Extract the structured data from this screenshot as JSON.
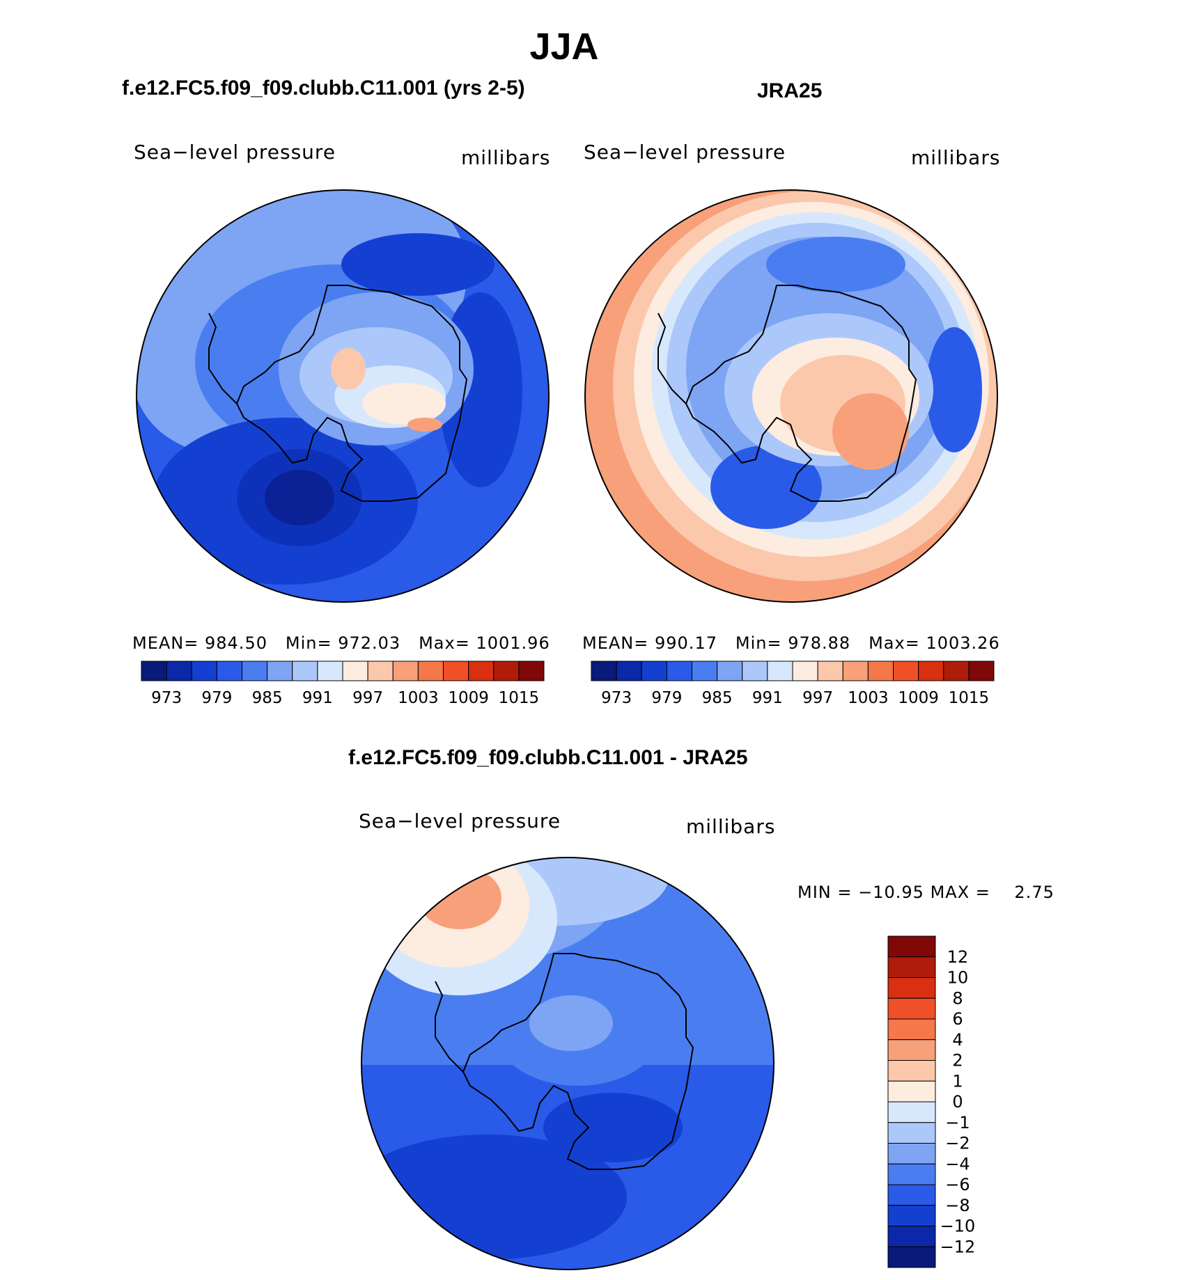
{
  "figure": {
    "title": "JJA",
    "variable_label": "Sea−level pressure",
    "units_label": "millibars"
  },
  "panels": [
    {
      "id": "model",
      "title": "f.e12.FC5.f09_f09.clubb.C11.001 (yrs 2-5)",
      "variable": "Sea−level pressure",
      "units": "millibars",
      "stats": {
        "mean_label": "MEAN=",
        "mean": "984.50",
        "min_label": "Min=",
        "min": "972.03",
        "max_label": "Max=",
        "max": "1001.96"
      }
    },
    {
      "id": "obs",
      "title": "JRA25",
      "variable": "Sea−level pressure",
      "units": "millibars",
      "stats": {
        "mean_label": "MEAN=",
        "mean": "990.17",
        "min_label": "Min=",
        "min": "978.88",
        "max_label": "Max=",
        "max": "1003.26"
      }
    },
    {
      "id": "diff",
      "title": "f.e12.FC5.f09_f09.clubb.C11.001 - JRA25",
      "variable": "Sea−level pressure",
      "units": "millibars",
      "stats": {
        "min_label": "MIN =",
        "min": "−10.95",
        "max_label": "MAX =",
        "max": "2.75"
      }
    }
  ],
  "colorbar_abs": {
    "ticks": [
      "973",
      "979",
      "985",
      "991",
      "997",
      "1003",
      "1009",
      "1015"
    ],
    "colors": [
      "#0a1a7a",
      "#0a28a8",
      "#1440d2",
      "#2a5ae8",
      "#4a7ef0",
      "#7ea4f4",
      "#acc8fa",
      "#d8e8fc",
      "#fdece0",
      "#fbc8ac",
      "#f8a07a",
      "#f4784a",
      "#f05028",
      "#d83010",
      "#b01c0a",
      "#800808"
    ]
  },
  "colorbar_diff": {
    "levels": [
      "12",
      "10",
      "8",
      "6",
      "4",
      "2",
      "1",
      "0",
      "−1",
      "−2",
      "−4",
      "−6",
      "−8",
      "−10",
      "−12"
    ],
    "colors_top_to_bottom": [
      "#800808",
      "#b01c0a",
      "#d83010",
      "#f05028",
      "#f4784a",
      "#f8a07a",
      "#fbc8ac",
      "#fdece0",
      "#d8e8fc",
      "#acc8fa",
      "#7ea4f4",
      "#4a7ef0",
      "#2a5ae8",
      "#1440d2",
      "#0a28a8",
      "#0a1a7a"
    ]
  }
}
